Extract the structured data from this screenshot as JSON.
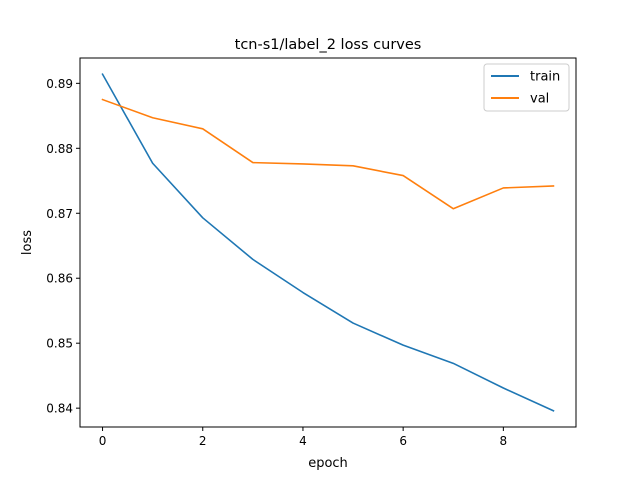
{
  "chart_data": {
    "type": "line",
    "title": "tcn-s1/label_2 loss curves",
    "xlabel": "epoch",
    "ylabel": "loss",
    "x": [
      0,
      1,
      2,
      3,
      4,
      5,
      6,
      7,
      8,
      9
    ],
    "xlim": [
      -0.45,
      9.45
    ],
    "ylim": [
      0.8371,
      0.8939
    ],
    "xticks": [
      0,
      2,
      4,
      6,
      8
    ],
    "yticks": [
      0.84,
      0.85,
      0.86,
      0.87,
      0.88,
      0.89
    ],
    "xtick_labels": [
      "0",
      "2",
      "4",
      "6",
      "8"
    ],
    "ytick_labels": [
      "0.84",
      "0.85",
      "0.86",
      "0.87",
      "0.88",
      "0.89"
    ],
    "grid": false,
    "legend_position": "top-right",
    "series": [
      {
        "name": "train",
        "color": "#1f77b4",
        "values": [
          0.8914,
          0.8777,
          0.8693,
          0.8629,
          0.8578,
          0.8531,
          0.8497,
          0.8469,
          0.8431,
          0.8396
        ]
      },
      {
        "name": "val",
        "color": "#ff7f0e",
        "values": [
          0.8875,
          0.8847,
          0.883,
          0.8778,
          0.8776,
          0.8773,
          0.8758,
          0.8707,
          0.8739,
          0.8742
        ]
      }
    ]
  }
}
